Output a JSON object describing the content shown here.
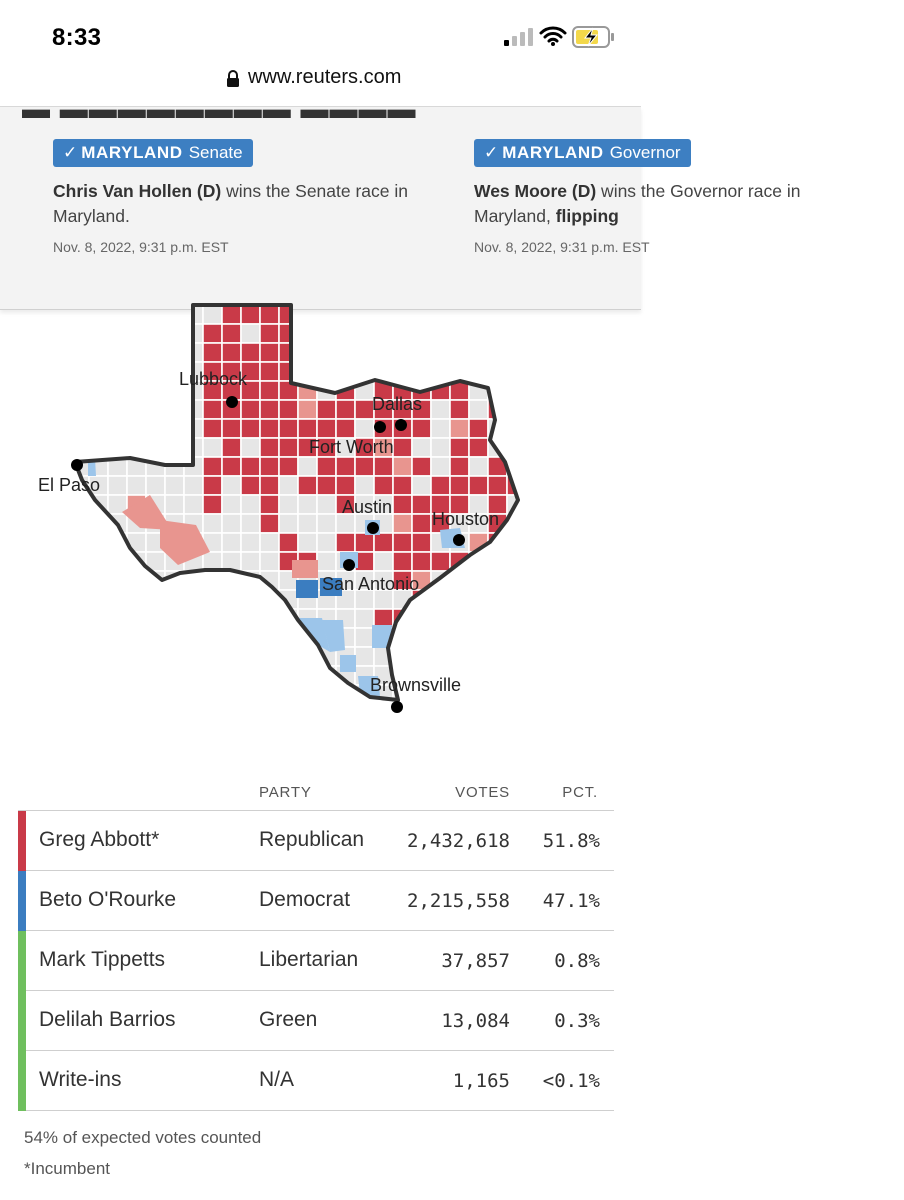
{
  "status_bar": {
    "time": "8:33"
  },
  "browser": {
    "url": "www.reuters.com"
  },
  "alerts": [
    {
      "state": "MARYLAND",
      "race": "Senate",
      "headline_bold": "Chris Van Hollen (D)",
      "headline_rest": " wins the Senate race in Maryland.",
      "timestamp": "Nov. 8, 2022, 9:31 p.m. EST"
    },
    {
      "state": "MARYLAND",
      "race": "Governor",
      "headline_bold": "Wes Moore (D)",
      "headline_mid": " wins the Governor race in Maryland, ",
      "headline_bold2": "flipping",
      "timestamp": "Nov. 8, 2022, 9:31 p.m. EST"
    }
  ],
  "map": {
    "cities": [
      "Lubbock",
      "Dallas",
      "Fort Worth",
      "El Paso",
      "Austin",
      "Houston",
      "San Antonio",
      "Brownsville"
    ],
    "colors": {
      "rep_strong": "#c93a48",
      "rep_lean": "#e8958f",
      "dem_strong": "#3b7dc0",
      "dem_lean": "#9cc5ea",
      "none": "#e6e6e6"
    }
  },
  "results": {
    "headers": {
      "party": "PARTY",
      "votes": "VOTES",
      "pct": "PCT."
    },
    "rows": [
      {
        "candidate": "Greg Abbott*",
        "party": "Republican",
        "votes": "2,432,618",
        "pct": "51.8%",
        "color": "#c93a48"
      },
      {
        "candidate": "Beto O'Rourke",
        "party": "Democrat",
        "votes": "2,215,558",
        "pct": "47.1%",
        "color": "#3b7dc0"
      },
      {
        "candidate": "Mark Tippetts",
        "party": "Libertarian",
        "votes": "37,857",
        "pct": "0.8%",
        "color": "#6fbf5e"
      },
      {
        "candidate": "Delilah Barrios",
        "party": "Green",
        "votes": "13,084",
        "pct": "0.3%",
        "color": "#6fbf5e"
      },
      {
        "candidate": "Write-ins",
        "party": "N/A",
        "votes": "1,165",
        "pct": "<0.1%",
        "color": "#6fbf5e"
      }
    ],
    "footnote_votes": "54% of expected votes counted",
    "footnote_incumbent": "*Incumbent"
  }
}
